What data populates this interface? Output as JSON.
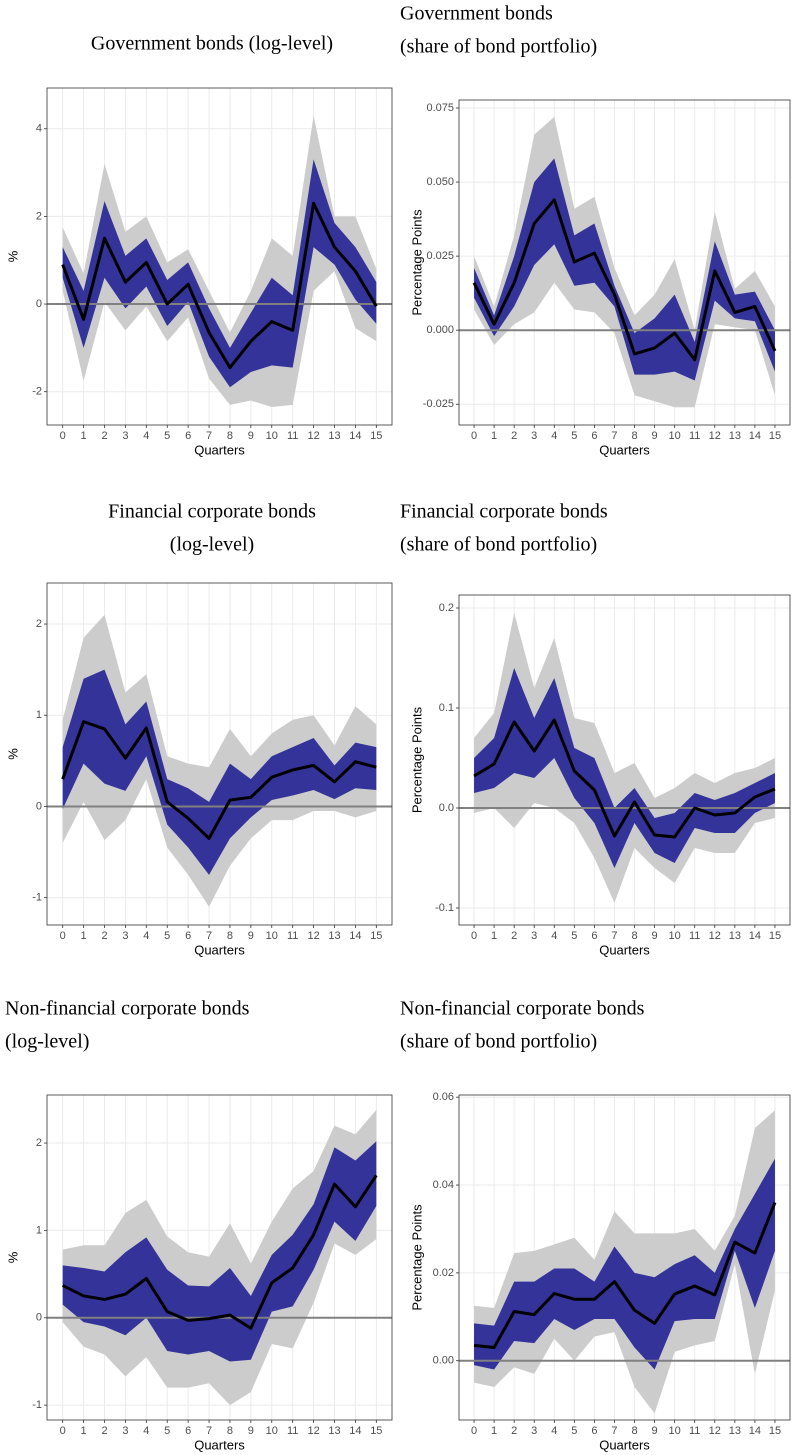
{
  "chart_data": [
    {
      "type": "line",
      "title": [
        "Government bonds (log-level)"
      ],
      "xlabel": "Quarters",
      "ylabel": "%",
      "x": [
        0,
        1,
        2,
        3,
        4,
        5,
        6,
        7,
        8,
        9,
        10,
        11,
        12,
        13,
        14,
        15
      ],
      "xlim": [
        -0.75,
        15.75
      ],
      "xticks": [
        0,
        1,
        2,
        3,
        4,
        5,
        6,
        7,
        8,
        9,
        10,
        11,
        12,
        13,
        14,
        15
      ],
      "ylim": [
        -2.76,
        4.93
      ],
      "yticks": [
        -2,
        0,
        2,
        4
      ],
      "grid": true,
      "hline": 0,
      "color": "#000000",
      "inner_color": "#333399",
      "outer_color": "#cccccc",
      "values": [
        0.9,
        -0.35,
        1.5,
        0.5,
        0.95,
        0.0,
        0.45,
        -0.65,
        -1.45,
        -0.85,
        -0.4,
        -0.6,
        2.3,
        1.3,
        0.75,
        -0.05
      ],
      "inner_band": {
        "upper": [
          1.3,
          0.3,
          2.35,
          1.1,
          1.5,
          0.55,
          0.95,
          -0.1,
          -1.0,
          -0.2,
          0.6,
          0.2,
          3.3,
          1.85,
          1.3,
          0.5
        ],
        "lower": [
          0.6,
          -1.0,
          0.6,
          -0.1,
          0.4,
          -0.5,
          0.05,
          -1.2,
          -1.9,
          -1.55,
          -1.4,
          -1.45,
          1.3,
          0.9,
          0.1,
          -0.45
        ]
      },
      "outer_band": {
        "upper": [
          1.75,
          0.7,
          3.2,
          1.65,
          2.0,
          0.95,
          1.25,
          0.3,
          -0.65,
          0.3,
          1.5,
          1.1,
          4.3,
          2.0,
          2.0,
          0.8
        ],
        "lower": [
          0.3,
          -1.75,
          0.05,
          -0.6,
          -0.05,
          -0.85,
          -0.3,
          -1.7,
          -2.3,
          -2.2,
          -2.35,
          -2.3,
          0.3,
          0.75,
          -0.55,
          -0.85
        ]
      }
    },
    {
      "type": "line",
      "title": [
        "Government bonds",
        "(share of bond portfolio)"
      ],
      "xlabel": "Quarters",
      "ylabel": "Percentage Points",
      "x": [
        0,
        1,
        2,
        3,
        4,
        5,
        6,
        7,
        8,
        9,
        10,
        11,
        12,
        13,
        14,
        15
      ],
      "xlim": [
        -0.75,
        15.75
      ],
      "xticks": [
        0,
        1,
        2,
        3,
        4,
        5,
        6,
        7,
        8,
        9,
        10,
        11,
        12,
        13,
        14,
        15
      ],
      "ylim": [
        -0.032,
        0.0777
      ],
      "yticks": [
        -0.025,
        {
          "value": 0,
          "label": "0.000"
        },
        0.025,
        {
          "value": 0.05,
          "label": "0.050"
        },
        0.075
      ],
      "grid": true,
      "hline": 0,
      "color": "#000000",
      "inner_color": "#333399",
      "outer_color": "#cccccc",
      "values": [
        0.016,
        0.002,
        0.016,
        0.036,
        0.044,
        0.023,
        0.026,
        0.012,
        -0.008,
        -0.006,
        -0.001,
        -0.01,
        0.02,
        0.006,
        0.008,
        -0.007
      ],
      "inner_band": {
        "upper": [
          0.021,
          0.005,
          0.025,
          0.05,
          0.058,
          0.032,
          0.036,
          0.015,
          -0.001,
          0.004,
          0.012,
          -0.004,
          0.03,
          0.012,
          0.013,
          0.0
        ],
        "lower": [
          0.011,
          -0.002,
          0.008,
          0.022,
          0.029,
          0.015,
          0.016,
          0.008,
          -0.015,
          -0.015,
          -0.014,
          -0.017,
          0.01,
          0.004,
          0.003,
          -0.014
        ]
      },
      "outer_band": {
        "upper": [
          0.025,
          0.008,
          0.032,
          0.066,
          0.072,
          0.041,
          0.045,
          0.021,
          0.005,
          0.012,
          0.024,
          0.0,
          0.04,
          0.014,
          0.02,
          0.008
        ],
        "lower": [
          0.007,
          -0.005,
          0.002,
          0.006,
          0.016,
          0.007,
          0.006,
          -0.001,
          -0.022,
          -0.024,
          -0.026,
          -0.026,
          0.002,
          0.001,
          0.0,
          -0.022
        ]
      }
    },
    {
      "type": "line",
      "title": [
        "Financial corporate bonds",
        "(log-level)"
      ],
      "xlabel": "Quarters",
      "ylabel": "%",
      "x": [
        0,
        1,
        2,
        3,
        4,
        5,
        6,
        7,
        8,
        9,
        10,
        11,
        12,
        13,
        14,
        15
      ],
      "xlim": [
        -0.75,
        15.75
      ],
      "xticks": [
        0,
        1,
        2,
        3,
        4,
        5,
        6,
        7,
        8,
        9,
        10,
        11,
        12,
        13,
        14,
        15
      ],
      "ylim": [
        -1.3,
        2.45
      ],
      "yticks": [
        -1,
        0,
        1,
        2
      ],
      "grid": true,
      "hline": 0,
      "color": "#000000",
      "inner_color": "#333399",
      "outer_color": "#cccccc",
      "values": [
        0.3,
        0.93,
        0.85,
        0.53,
        0.86,
        0.05,
        -0.13,
        -0.35,
        0.07,
        0.1,
        0.32,
        0.4,
        0.45,
        0.27,
        0.49,
        0.43
      ],
      "inner_band": {
        "upper": [
          0.65,
          1.4,
          1.5,
          0.9,
          1.15,
          0.3,
          0.2,
          0.05,
          0.47,
          0.3,
          0.55,
          0.65,
          0.75,
          0.45,
          0.7,
          0.65
        ],
        "lower": [
          -0.03,
          0.47,
          0.25,
          0.17,
          0.55,
          -0.2,
          -0.45,
          -0.75,
          -0.35,
          -0.12,
          0.07,
          0.12,
          0.18,
          0.08,
          0.2,
          0.18
        ]
      },
      "outer_band": {
        "upper": [
          0.95,
          1.85,
          2.1,
          1.25,
          1.45,
          0.55,
          0.47,
          0.43,
          0.85,
          0.55,
          0.8,
          0.95,
          1.0,
          0.67,
          1.1,
          0.9
        ],
        "lower": [
          -0.4,
          0.05,
          -0.37,
          -0.15,
          0.3,
          -0.45,
          -0.75,
          -1.1,
          -0.65,
          -0.35,
          -0.15,
          -0.15,
          -0.05,
          -0.05,
          -0.12,
          -0.05
        ]
      }
    },
    {
      "type": "line",
      "title": [
        "Financial corporate bonds",
        "(share of bond portfolio)"
      ],
      "xlabel": "Quarters",
      "ylabel": "Percentage Points",
      "x": [
        0,
        1,
        2,
        3,
        4,
        5,
        6,
        7,
        8,
        9,
        10,
        11,
        12,
        13,
        14,
        15
      ],
      "xlim": [
        -0.75,
        15.75
      ],
      "xticks": [
        0,
        1,
        2,
        3,
        4,
        5,
        6,
        7,
        8,
        9,
        10,
        11,
        12,
        13,
        14,
        15
      ],
      "ylim": [
        -0.117,
        0.213
      ],
      "yticks": [
        -0.1,
        {
          "value": 0,
          "label": "0.0"
        },
        0.1,
        0.2
      ],
      "grid": true,
      "hline": 0,
      "color": "#000000",
      "inner_color": "#333399",
      "outer_color": "#cccccc",
      "values": [
        0.032,
        0.044,
        0.086,
        0.057,
        0.088,
        0.037,
        0.018,
        -0.028,
        0.006,
        -0.027,
        -0.029,
        0.0,
        -0.007,
        -0.005,
        0.011,
        0.019
      ],
      "inner_band": {
        "upper": [
          0.05,
          0.07,
          0.14,
          0.09,
          0.13,
          0.06,
          0.05,
          0.0,
          0.02,
          -0.01,
          -0.005,
          0.015,
          0.008,
          0.015,
          0.025,
          0.035
        ],
        "lower": [
          0.015,
          0.02,
          0.035,
          0.03,
          0.05,
          0.01,
          -0.015,
          -0.06,
          -0.015,
          -0.045,
          -0.055,
          -0.02,
          -0.025,
          -0.025,
          -0.005,
          0.005
        ]
      },
      "outer_band": {
        "upper": [
          0.07,
          0.095,
          0.195,
          0.12,
          0.17,
          0.09,
          0.085,
          0.035,
          0.045,
          0.01,
          0.02,
          0.035,
          0.025,
          0.035,
          0.04,
          0.05
        ],
        "lower": [
          -0.005,
          0.0,
          -0.02,
          0.005,
          0.0,
          -0.015,
          -0.05,
          -0.095,
          -0.04,
          -0.06,
          -0.075,
          -0.04,
          -0.045,
          -0.045,
          -0.015,
          -0.01
        ]
      }
    },
    {
      "type": "line",
      "title": [
        "Non-financial corporate bonds",
        "(log-level)"
      ],
      "xlabel": "Quarters",
      "ylabel": "%",
      "x": [
        0,
        1,
        2,
        3,
        4,
        5,
        6,
        7,
        8,
        9,
        10,
        11,
        12,
        13,
        14,
        15
      ],
      "xlim": [
        -0.75,
        15.75
      ],
      "xticks": [
        0,
        1,
        2,
        3,
        4,
        5,
        6,
        7,
        8,
        9,
        10,
        11,
        12,
        13,
        14,
        15
      ],
      "ylim": [
        -1.17,
        2.55
      ],
      "yticks": [
        -1,
        0,
        1,
        2
      ],
      "grid": true,
      "hline": 0,
      "color": "#000000",
      "inner_color": "#333399",
      "outer_color": "#cccccc",
      "values": [
        0.37,
        0.25,
        0.21,
        0.27,
        0.45,
        0.07,
        -0.03,
        -0.01,
        0.03,
        -0.12,
        0.4,
        0.57,
        0.95,
        1.53,
        1.27,
        1.63
      ],
      "inner_band": {
        "upper": [
          0.6,
          0.57,
          0.53,
          0.75,
          0.92,
          0.55,
          0.37,
          0.36,
          0.57,
          0.25,
          0.72,
          0.95,
          1.3,
          1.95,
          1.8,
          2.02
        ],
        "lower": [
          0.15,
          -0.05,
          -0.1,
          -0.2,
          0.0,
          -0.38,
          -0.42,
          -0.38,
          -0.5,
          -0.48,
          0.07,
          0.13,
          0.55,
          1.1,
          0.88,
          1.28
        ]
      },
      "outer_band": {
        "upper": [
          0.78,
          0.83,
          0.83,
          1.2,
          1.35,
          0.93,
          0.75,
          0.7,
          1.08,
          0.62,
          1.1,
          1.48,
          1.68,
          2.2,
          2.1,
          2.38
        ],
        "lower": [
          -0.05,
          -0.33,
          -0.42,
          -0.67,
          -0.45,
          -0.8,
          -0.8,
          -0.75,
          -1.0,
          -0.85,
          -0.3,
          -0.35,
          0.17,
          0.85,
          0.72,
          0.9
        ]
      }
    },
    {
      "type": "line",
      "title": [
        "Non-financial corporate bonds",
        "(share of bond portfolio)"
      ],
      "xlabel": "Quarters",
      "ylabel": "Percentage Points",
      "x": [
        0,
        1,
        2,
        3,
        4,
        5,
        6,
        7,
        8,
        9,
        10,
        11,
        12,
        13,
        14,
        15
      ],
      "xlim": [
        -0.75,
        15.75
      ],
      "xticks": [
        0,
        1,
        2,
        3,
        4,
        5,
        6,
        7,
        8,
        9,
        10,
        11,
        12,
        13,
        14,
        15
      ],
      "ylim": [
        -0.0135,
        0.0605
      ],
      "yticks": [
        {
          "value": 0,
          "label": "0.00"
        },
        0.02,
        0.04,
        0.06
      ],
      "grid": true,
      "hline": 0,
      "color": "#000000",
      "inner_color": "#333399",
      "outer_color": "#cccccc",
      "values": [
        0.0035,
        0.003,
        0.0112,
        0.0105,
        0.0153,
        0.014,
        0.014,
        0.018,
        0.0115,
        0.0085,
        0.0152,
        0.017,
        0.015,
        0.027,
        0.0245,
        0.036
      ],
      "inner_band": {
        "upper": [
          0.0085,
          0.008,
          0.018,
          0.018,
          0.021,
          0.021,
          0.018,
          0.026,
          0.02,
          0.019,
          0.022,
          0.024,
          0.02,
          0.03,
          0.038,
          0.046
        ],
        "lower": [
          -0.001,
          -0.002,
          0.0045,
          0.004,
          0.0095,
          0.007,
          0.0095,
          0.0095,
          0.003,
          -0.002,
          0.009,
          0.0095,
          0.0095,
          0.025,
          0.012,
          0.025
        ]
      },
      "outer_band": {
        "upper": [
          0.0125,
          0.012,
          0.0245,
          0.025,
          0.0265,
          0.028,
          0.023,
          0.034,
          0.029,
          0.029,
          0.029,
          0.03,
          0.025,
          0.033,
          0.053,
          0.057
        ],
        "lower": [
          -0.005,
          -0.006,
          -0.0015,
          -0.003,
          0.005,
          0.0,
          0.0055,
          0.0065,
          -0.006,
          -0.012,
          0.002,
          0.0035,
          0.0045,
          0.022,
          -0.003,
          0.016
        ]
      }
    }
  ]
}
